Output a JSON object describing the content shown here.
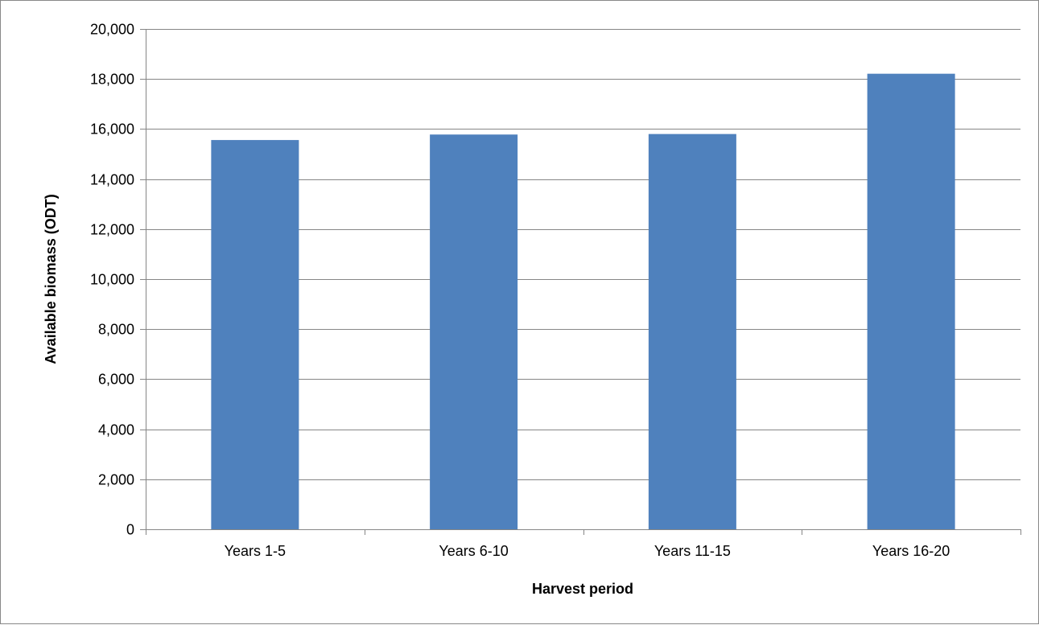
{
  "chart_data": {
    "type": "bar",
    "categories": [
      "Years 1-5",
      "Years 6-10",
      "Years 11-15",
      "Years 16-20"
    ],
    "series": [
      {
        "values": [
          15560,
          15780,
          15800,
          18210
        ]
      }
    ],
    "title": "",
    "xlabel": "Harvest period",
    "ylabel": "Available biomass (ODT)",
    "ylim": [
      0,
      20000
    ],
    "yticks": [
      "0",
      "2,000",
      "4,000",
      "6,000",
      "8,000",
      "10,000",
      "12,000",
      "14,000",
      "16,000",
      "18,000",
      "20,000"
    ],
    "grid": true,
    "legend": "none",
    "bar_color": "#4f81bd",
    "grid_color": "#868686"
  }
}
